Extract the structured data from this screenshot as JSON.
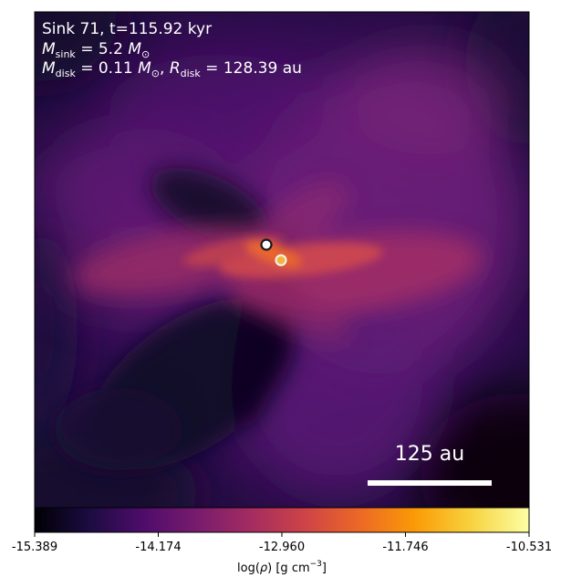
{
  "header": {
    "sink_line": "Sink 71, t=115.92 kyr",
    "mass_line": {
      "symbol": "M",
      "subscript": "sink",
      "equals": " = 5.2 ",
      "unit": "M",
      "unit_subscript": "⊙"
    },
    "disk_line": {
      "mass_symbol": "M",
      "mass_subscript": "disk",
      "mass_equals": " = 0.11 ",
      "mass_unit": "M",
      "mass_unit_subscript": "⊙",
      "separator": ", ",
      "radius_symbol": "R",
      "radius_subscript": "disk",
      "radius_equals": " = 128.39 au"
    }
  },
  "scale_bar": {
    "label": "125 au",
    "length_au": 125
  },
  "colorbar": {
    "ticks": [
      "-15.389",
      "-14.174",
      "-12.960",
      "-11.746",
      "-10.531"
    ],
    "min": -15.389,
    "max": -10.531,
    "label_prefix": "log(",
    "label_rho": "ρ",
    "label_mid": ") [g cm",
    "label_exp": "−3",
    "label_suffix": "]",
    "colormap": "magma-like",
    "stops": [
      "#000004",
      "#1b0c41",
      "#4f0c6b",
      "#781c6d",
      "#a52c60",
      "#cf4446",
      "#ed6925",
      "#fb9b06",
      "#f7d13d",
      "#fcffa4"
    ]
  },
  "sinks": [
    {
      "name": "sink-primary",
      "fill": "#ffffff",
      "ring": "#1a1a1a"
    },
    {
      "name": "sink-secondary",
      "fill": "#f2b640",
      "ring": "#f5f5f5"
    }
  ]
}
